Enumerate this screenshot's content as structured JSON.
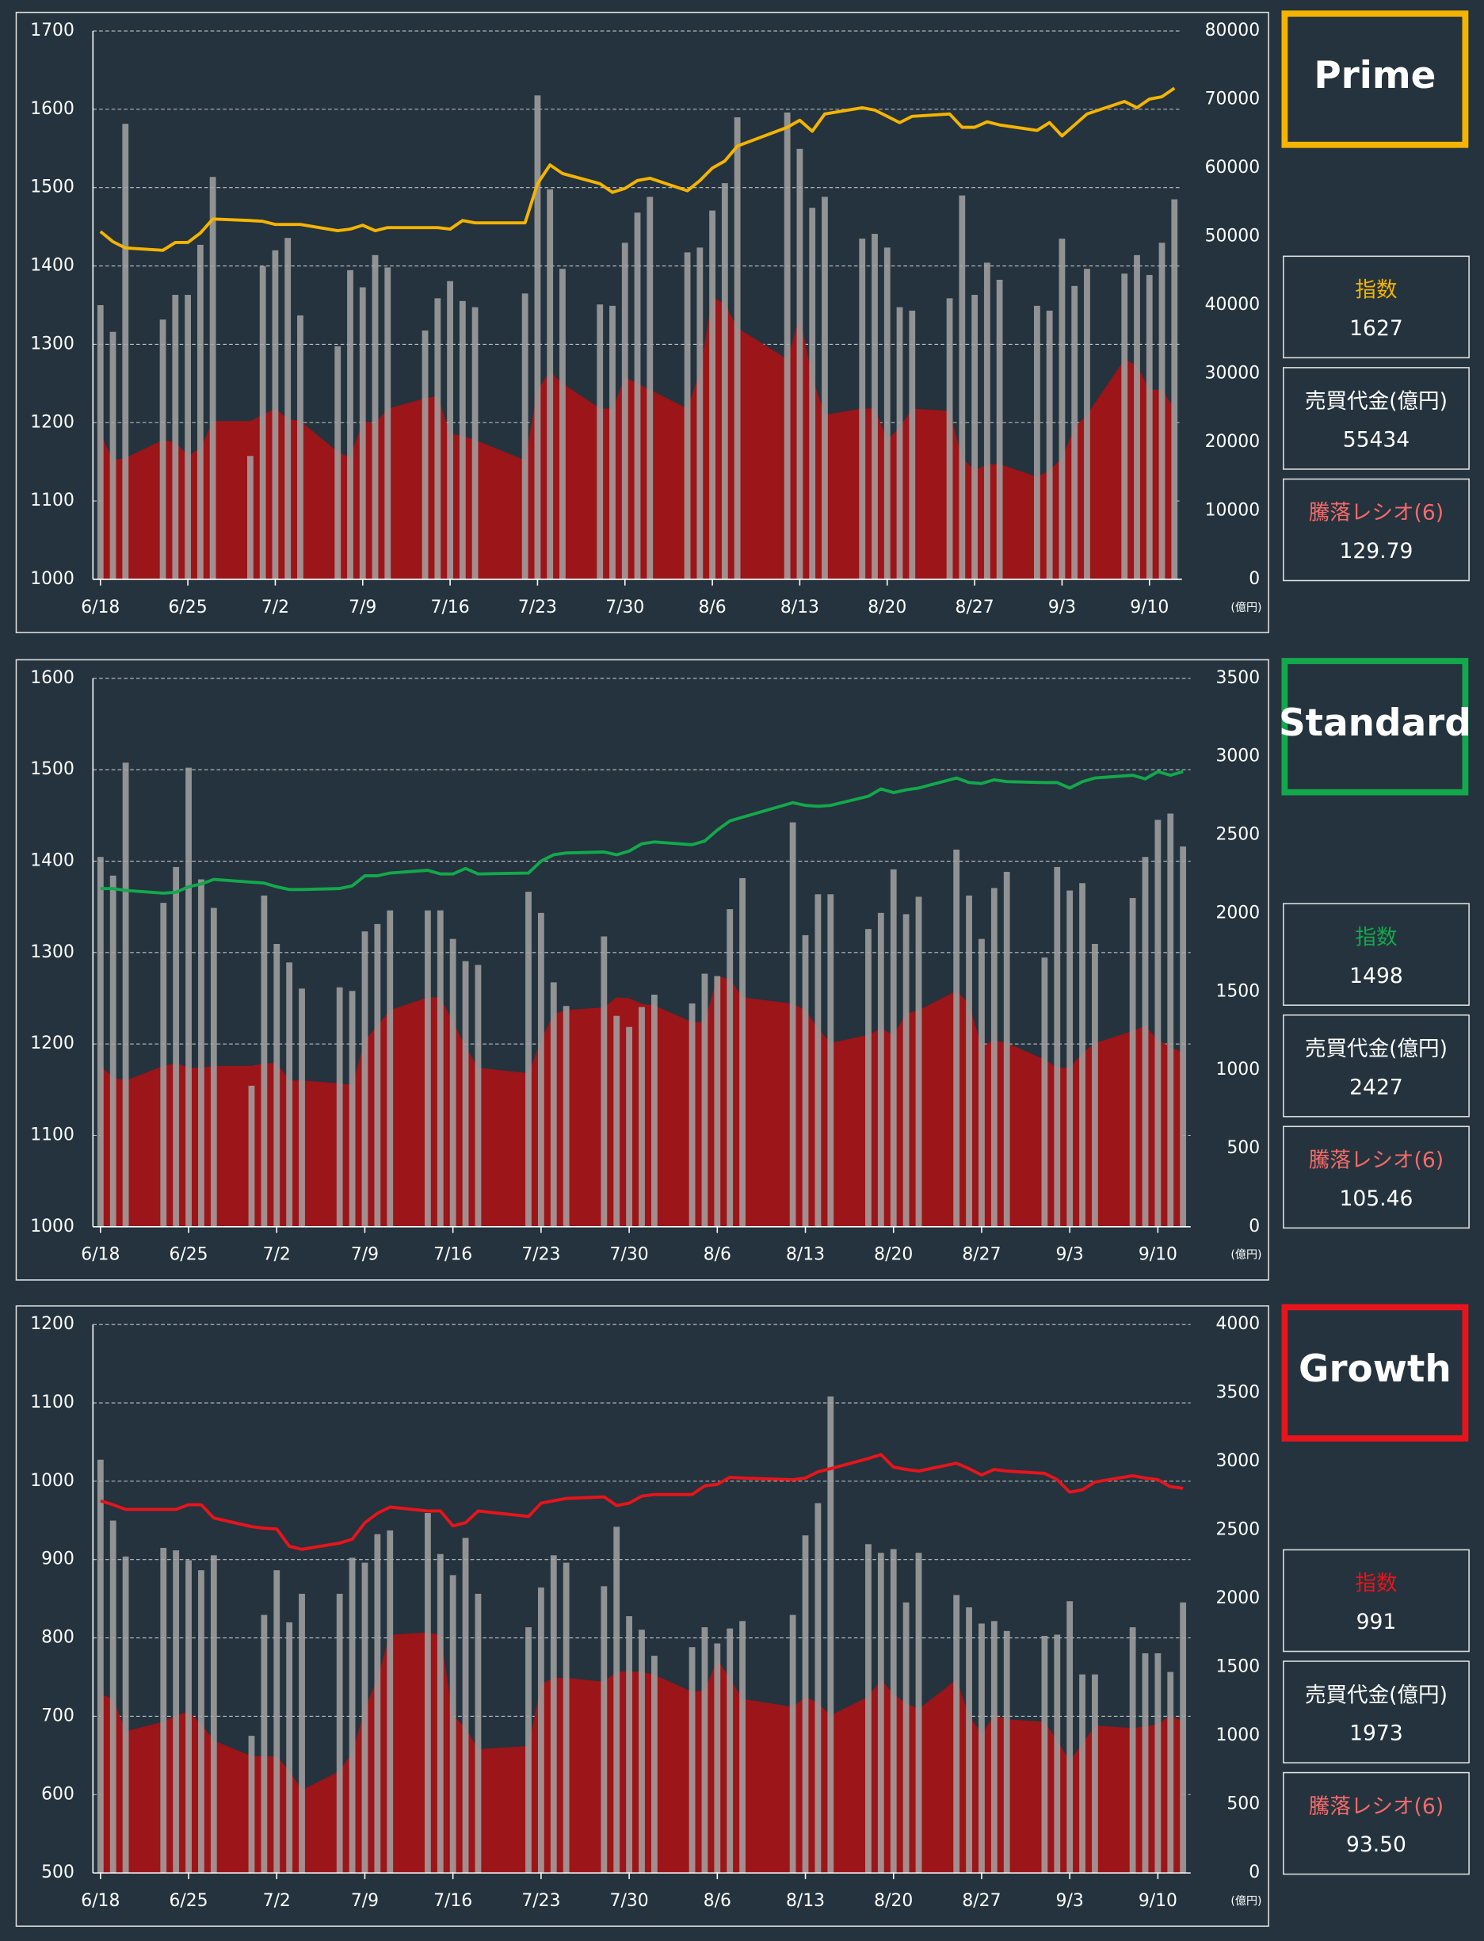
{
  "chart_data": [
    {
      "type": "combo",
      "x": [
        "6/18",
        "6/19",
        "6/20",
        "6/23",
        "6/24",
        "6/25",
        "6/26",
        "6/27",
        "6/30",
        "7/1",
        "7/2",
        "7/3",
        "7/4",
        "7/7",
        "7/8",
        "7/9",
        "7/10",
        "7/11",
        "7/14",
        "7/15",
        "7/16",
        "7/17",
        "7/18",
        "7/22",
        "7/23",
        "7/24",
        "7/25",
        "7/28",
        "7/29",
        "7/30",
        "7/31",
        "8/1",
        "8/4",
        "8/5",
        "8/6",
        "8/7",
        "8/8",
        "8/12",
        "8/13",
        "8/14",
        "8/15",
        "8/18",
        "8/19",
        "8/20",
        "8/21",
        "8/22",
        "8/25",
        "8/26",
        "8/27",
        "8/28",
        "8/29",
        "9/1",
        "9/2",
        "9/3",
        "9/4",
        "9/5",
        "9/8",
        "9/9",
        "9/10",
        "9/11",
        "9/12"
      ],
      "xticks": [
        "6/18",
        "6/25",
        "7/2",
        "7/9",
        "7/16",
        "7/23",
        "7/30",
        "8/6",
        "8/13",
        "8/20",
        "8/27",
        "9/3",
        "9/10"
      ],
      "ylim": [
        1000,
        1700
      ],
      "yticks": [
        1000,
        1100,
        1200,
        1300,
        1400,
        1500,
        1600,
        1700
      ],
      "y2lim": [
        0,
        80000
      ],
      "y2ticks": [
        0,
        10000,
        20000,
        30000,
        40000,
        50000,
        60000,
        70000,
        80000
      ],
      "y2_unit": "(億円)",
      "grid": true,
      "series": [
        {
          "kind": "area",
          "color": "#9b1519",
          "values": [
            1186,
            1152,
            1155,
            1178,
            1175,
            1158,
            1167,
            1202,
            1202,
            1210,
            1218,
            1205,
            1202,
            1163,
            1155,
            1202,
            1199,
            1218,
            1231,
            1234,
            1186,
            1183,
            1178,
            1152,
            1242,
            1265,
            1250,
            1218,
            1218,
            1258,
            1250,
            1242,
            1218,
            1265,
            1360,
            1352,
            1321,
            1281,
            1336,
            1258,
            1210,
            1218,
            1218,
            1178,
            1194,
            1218,
            1215,
            1155,
            1139,
            1147,
            1147,
            1131,
            1139,
            1155,
            1194,
            1210,
            1281,
            1273,
            1242,
            1242,
            1218
          ]
        },
        {
          "kind": "bar",
          "axis": "y2",
          "color": "#a3a3a3",
          "values": [
            40000,
            36100,
            66450,
            37900,
            41500,
            41500,
            48800,
            58700,
            18000,
            45700,
            48000,
            49800,
            38500,
            34000,
            45100,
            42600,
            47300,
            45500,
            36300,
            41000,
            43500,
            40600,
            39700,
            41700,
            70600,
            56900,
            45300,
            40100,
            39900,
            49100,
            53500,
            55800,
            47700,
            48400,
            53800,
            57800,
            67400,
            68100,
            62800,
            54200,
            55800,
            49700,
            50400,
            48400,
            39700,
            39200,
            41000,
            56000,
            41500,
            46200,
            43700,
            39900,
            39200,
            49700,
            42800,
            45300,
            44600,
            47300,
            44400,
            49100,
            55434
          ]
        },
        {
          "kind": "line",
          "color": "#f5b400",
          "values": [
            1444,
            1431,
            1423,
            1420,
            1430,
            1430,
            1442,
            1460,
            1458,
            1457,
            1453,
            1453,
            1453,
            1445,
            1447,
            1452,
            1445,
            1449,
            1449,
            1449,
            1447,
            1458,
            1455,
            1455,
            1505,
            1529,
            1518,
            1505,
            1494,
            1499,
            1509,
            1512,
            1496,
            1509,
            1525,
            1534,
            1553,
            1577,
            1586,
            1572,
            1594,
            1602,
            1599,
            1591,
            1583,
            1591,
            1594,
            1577,
            1577,
            1584,
            1580,
            1573,
            1583,
            1566,
            1580,
            1594,
            1610,
            1602,
            1613,
            1616,
            1627
          ]
        }
      ]
    },
    {
      "type": "combo",
      "x": [
        "6/18",
        "6/19",
        "6/20",
        "6/23",
        "6/24",
        "6/25",
        "6/26",
        "6/27",
        "6/30",
        "7/1",
        "7/2",
        "7/3",
        "7/4",
        "7/7",
        "7/8",
        "7/9",
        "7/10",
        "7/11",
        "7/14",
        "7/15",
        "7/16",
        "7/17",
        "7/18",
        "7/22",
        "7/23",
        "7/24",
        "7/25",
        "7/28",
        "7/29",
        "7/30",
        "7/31",
        "8/1",
        "8/4",
        "8/5",
        "8/6",
        "8/7",
        "8/8",
        "8/12",
        "8/13",
        "8/14",
        "8/15",
        "8/18",
        "8/19",
        "8/20",
        "8/21",
        "8/22",
        "8/25",
        "8/26",
        "8/27",
        "8/28",
        "8/29",
        "9/1",
        "9/2",
        "9/3",
        "9/4",
        "9/5",
        "9/8",
        "9/9",
        "9/10",
        "9/11",
        "9/12"
      ],
      "xticks": [
        "6/18",
        "6/25",
        "7/2",
        "7/9",
        "7/16",
        "7/23",
        "7/30",
        "8/6",
        "8/13",
        "8/20",
        "8/27",
        "9/3",
        "9/10"
      ],
      "ylim": [
        1000,
        1600
      ],
      "yticks": [
        1000,
        1100,
        1200,
        1300,
        1400,
        1500,
        1600
      ],
      "y2lim": [
        0,
        3500
      ],
      "y2ticks": [
        0,
        500,
        1000,
        1500,
        2000,
        2500,
        3000,
        3500
      ],
      "y2_unit": "(億円)",
      "grid": true,
      "series": [
        {
          "kind": "area",
          "color": "#9b1519",
          "values": [
            1176,
            1163,
            1160,
            1176,
            1179,
            1174,
            1174,
            1176,
            1176,
            1179,
            1179,
            1160,
            1160,
            1157,
            1155,
            1204,
            1220,
            1237,
            1251,
            1251,
            1224,
            1197,
            1174,
            1168,
            1204,
            1233,
            1237,
            1240,
            1251,
            1250,
            1244,
            1242,
            1224,
            1224,
            1274,
            1271,
            1251,
            1244,
            1237,
            1217,
            1201,
            1210,
            1217,
            1210,
            1233,
            1237,
            1258,
            1244,
            1197,
            1204,
            1201,
            1183,
            1174,
            1174,
            1190,
            1201,
            1214,
            1220,
            1204,
            1197,
            1190
          ]
        },
        {
          "kind": "bar",
          "axis": "y2",
          "color": "#a3a3a3",
          "values": [
            2360,
            2241,
            2962,
            2067,
            2296,
            2930,
            2217,
            2035,
            900,
            2114,
            1805,
            1687,
            1520,
            1528,
            1505,
            1885,
            1932,
            2019,
            2019,
            2019,
            1837,
            1695,
            1671,
            2138,
            2003,
            1560,
            1409,
            1853,
            1346,
            1275,
            1402,
            1481,
            1425,
            1615,
            1600,
            2027,
            2225,
            2581,
            1861,
            2122,
            2122,
            1900,
            2003,
            2281,
            1995,
            2106,
            2407,
            2114,
            1837,
            2162,
            2265,
            1718,
            2296,
            2146,
            2193,
            1805,
            2098,
            2360,
            2597,
            2637,
            2427
          ]
        },
        {
          "kind": "line",
          "color": "#13a84c",
          "values": [
            1370,
            1370,
            1368,
            1365,
            1366,
            1372,
            1375,
            1380,
            1377,
            1376,
            1372,
            1369,
            1369,
            1370,
            1373,
            1384,
            1384,
            1387,
            1390,
            1386,
            1386,
            1392,
            1386,
            1387,
            1400,
            1407,
            1409,
            1410,
            1407,
            1411,
            1419,
            1421,
            1418,
            1422,
            1434,
            1444,
            1448,
            1464,
            1461,
            1460,
            1461,
            1471,
            1479,
            1475,
            1478,
            1480,
            1491,
            1486,
            1485,
            1489,
            1487,
            1486,
            1486,
            1480,
            1487,
            1491,
            1494,
            1490,
            1498,
            1494,
            1498
          ]
        }
      ]
    },
    {
      "type": "combo",
      "x": [
        "6/18",
        "6/19",
        "6/20",
        "6/23",
        "6/24",
        "6/25",
        "6/26",
        "6/27",
        "6/30",
        "7/1",
        "7/2",
        "7/3",
        "7/4",
        "7/7",
        "7/8",
        "7/9",
        "7/10",
        "7/11",
        "7/14",
        "7/15",
        "7/16",
        "7/17",
        "7/18",
        "7/22",
        "7/23",
        "7/24",
        "7/25",
        "7/28",
        "7/29",
        "7/30",
        "7/31",
        "8/1",
        "8/4",
        "8/5",
        "8/6",
        "8/7",
        "8/8",
        "8/12",
        "8/13",
        "8/14",
        "8/15",
        "8/18",
        "8/19",
        "8/20",
        "8/21",
        "8/22",
        "8/25",
        "8/26",
        "8/27",
        "8/28",
        "8/29",
        "9/1",
        "9/2",
        "9/3",
        "9/4",
        "9/5",
        "9/8",
        "9/9",
        "9/10",
        "9/11",
        "9/12"
      ],
      "xticks": [
        "6/18",
        "6/25",
        "7/2",
        "7/9",
        "7/16",
        "7/23",
        "7/30",
        "8/6",
        "8/13",
        "8/20",
        "8/27",
        "9/3",
        "9/10"
      ],
      "ylim": [
        500,
        1200
      ],
      "yticks": [
        500,
        600,
        700,
        800,
        900,
        1000,
        1100,
        1200
      ],
      "y2lim": [
        0,
        4000
      ],
      "y2ticks": [
        0,
        500,
        1000,
        1500,
        2000,
        2500,
        3000,
        3500,
        4000
      ],
      "y2_unit": "(億円)",
      "grid": true,
      "series": [
        {
          "kind": "area",
          "color": "#9b1519",
          "values": [
            728,
            722,
            681,
            693,
            701,
            706,
            690,
            669,
            649,
            649,
            649,
            630,
            606,
            630,
            654,
            709,
            749,
            804,
            807,
            804,
            701,
            685,
            658,
            662,
            741,
            749,
            749,
            744,
            757,
            757,
            757,
            753,
            731,
            733,
            772,
            749,
            722,
            712,
            725,
            717,
            701,
            725,
            747,
            728,
            717,
            709,
            747,
            701,
            677,
            701,
            696,
            693,
            669,
            643,
            665,
            688,
            685,
            687,
            690,
            701,
            693
          ]
        },
        {
          "kind": "bar",
          "axis": "y2",
          "color": "#a3a3a3",
          "values": [
            3014,
            2570,
            2308,
            2371,
            2353,
            2281,
            2208,
            2317,
            1000,
            1882,
            2208,
            1828,
            2036,
            2036,
            2299,
            2263,
            2471,
            2498,
            2625,
            2326,
            2172,
            2444,
            2036,
            1792,
            2082,
            2317,
            2263,
            2091,
            2525,
            1873,
            1774,
            1584,
            1647,
            1792,
            1674,
            1783,
            1837,
            1882,
            2462,
            2697,
            3475,
            2398,
            2335,
            2362,
            1973,
            2335,
            2027,
            1937,
            1819,
            1837,
            1765,
            1729,
            1738,
            1982,
            1448,
            1448,
            1792,
            1602,
            1602,
            1466,
            1973
          ]
        },
        {
          "kind": "line",
          "color": "#e8141b",
          "values": [
            975,
            970,
            964,
            964,
            964,
            970,
            970,
            953,
            942,
            940,
            939,
            917,
            913,
            921,
            926,
            947,
            959,
            967,
            962,
            962,
            943,
            947,
            962,
            955,
            972,
            975,
            978,
            980,
            969,
            972,
            981,
            983,
            983,
            994,
            996,
            1005,
            1004,
            1002,
            1004,
            1012,
            1016,
            1029,
            1034,
            1018,
            1015,
            1013,
            1023,
            1016,
            1008,
            1015,
            1013,
            1010,
            1002,
            986,
            989,
            999,
            1007,
            1004,
            1002,
            993,
            991
          ]
        }
      ]
    }
  ],
  "panels": [
    {
      "name": "Prime",
      "color": "#f5b400",
      "stats": [
        {
          "label": "指数",
          "value": "1627",
          "color": "#f5b400"
        },
        {
          "label": "売買代金(億円)",
          "value": "55434",
          "color": "#ffffff"
        },
        {
          "label": "騰落レシオ(6)",
          "value": "129.79",
          "color": "#f56a6a"
        }
      ]
    },
    {
      "name": "Standard",
      "color": "#13a84c",
      "stats": [
        {
          "label": "指数",
          "value": "1498",
          "color": "#13a84c"
        },
        {
          "label": "売買代金(億円)",
          "value": "2427",
          "color": "#ffffff"
        },
        {
          "label": "騰落レシオ(6)",
          "value": "105.46",
          "color": "#f56a6a"
        }
      ]
    },
    {
      "name": "Growth",
      "color": "#e8141b",
      "stats": [
        {
          "label": "指数",
          "value": "991",
          "color": "#e8141b"
        },
        {
          "label": "売買代金(億円)",
          "value": "1973",
          "color": "#ffffff"
        },
        {
          "label": "騰落レシオ(6)",
          "value": "93.50",
          "color": "#f56a6a"
        }
      ]
    }
  ]
}
